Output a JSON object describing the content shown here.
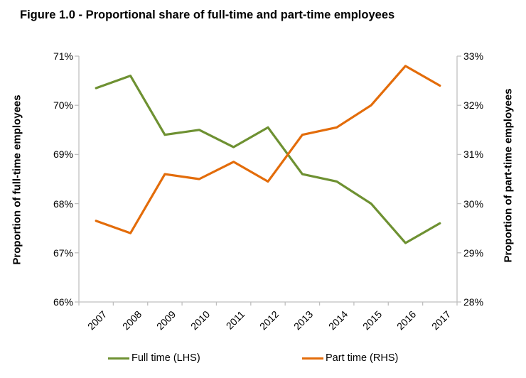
{
  "title": "Figure 1.0 - Proportional share of full-time and part-time employees",
  "colors": {
    "background": "#FFFFFF",
    "axis_line": "#BFBFBF",
    "text": "#000000",
    "full_time_line": "#6E9132",
    "part_time_line": "#E36C0A"
  },
  "chart_data": {
    "type": "line",
    "categories": [
      "2007",
      "2008",
      "2009",
      "2010",
      "2011",
      "2012",
      "2013",
      "2014",
      "2015",
      "2016",
      "2017"
    ],
    "series": [
      {
        "name": "Full time (LHS)",
        "axis": "left",
        "color": "#6E9132",
        "values": [
          70.35,
          70.6,
          69.4,
          69.5,
          69.15,
          69.55,
          68.6,
          68.45,
          68.0,
          67.2,
          67.6
        ]
      },
      {
        "name": "Part time (RHS)",
        "axis": "right",
        "color": "#E36C0A",
        "values": [
          29.65,
          29.4,
          30.6,
          30.5,
          30.85,
          30.45,
          31.4,
          31.55,
          32.0,
          32.8,
          32.4
        ]
      }
    ],
    "left_axis": {
      "label": "Proportion of full-time employees",
      "min": 66,
      "max": 71,
      "tick_step": 1,
      "tick_suffix": "%"
    },
    "right_axis": {
      "label": "Proportion of part-time employees",
      "min": 28,
      "max": 33,
      "tick_step": 1,
      "tick_suffix": "%"
    },
    "grid": false,
    "legend_position": "bottom"
  },
  "legend": {
    "items": [
      {
        "label": "Full time (LHS)",
        "color": "#6E9132"
      },
      {
        "label": "Part time (RHS)",
        "color": "#E36C0A"
      }
    ]
  }
}
